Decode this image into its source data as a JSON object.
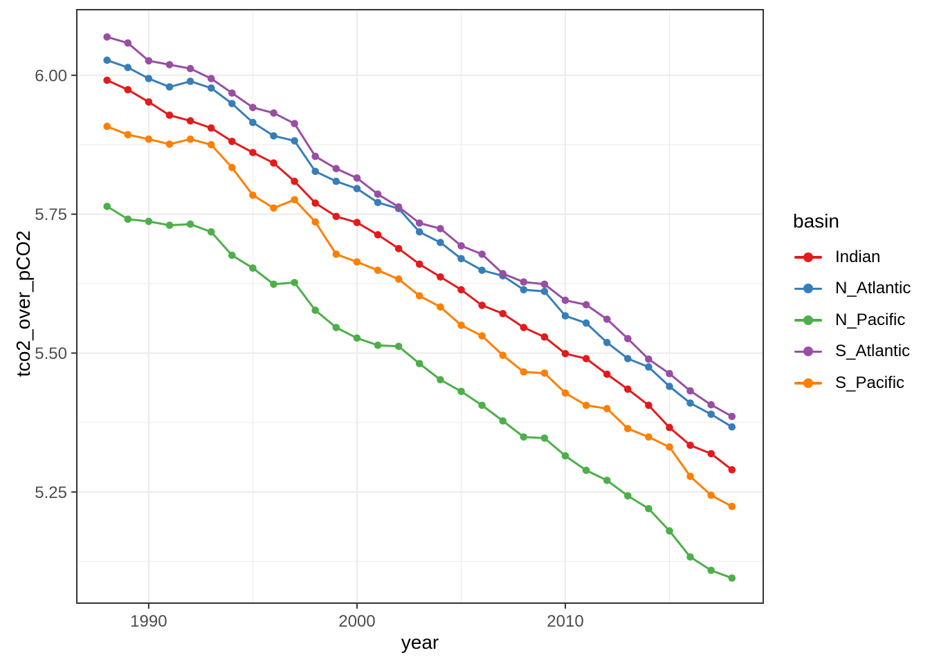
{
  "chart_data": {
    "type": "line",
    "title": "",
    "xlabel": "year",
    "ylabel": "tco2_over_pCO2",
    "legend_title": "basin",
    "legend_position": "right",
    "grid": true,
    "x": [
      1988,
      1989,
      1990,
      1991,
      1992,
      1993,
      1994,
      1995,
      1996,
      1997,
      1998,
      1999,
      2000,
      2001,
      2002,
      2003,
      2004,
      2005,
      2006,
      2007,
      2008,
      2009,
      2010,
      2011,
      2012,
      2013,
      2014,
      2015,
      2016,
      2017,
      2018
    ],
    "series": [
      {
        "name": "Indian",
        "color": "#E41A1C",
        "values": [
          5.991,
          5.974,
          5.952,
          5.928,
          5.918,
          5.905,
          5.881,
          5.861,
          5.842,
          5.809,
          5.77,
          5.746,
          5.735,
          5.713,
          5.688,
          5.66,
          5.637,
          5.614,
          5.586,
          5.571,
          5.546,
          5.529,
          5.499,
          5.49,
          5.462,
          5.435,
          5.406,
          5.366,
          5.334,
          5.319,
          5.29
        ]
      },
      {
        "name": "N_Atlantic",
        "color": "#377EB8",
        "values": [
          6.027,
          6.014,
          5.994,
          5.979,
          5.989,
          5.977,
          5.949,
          5.915,
          5.891,
          5.882,
          5.827,
          5.809,
          5.796,
          5.771,
          5.76,
          5.718,
          5.699,
          5.67,
          5.649,
          5.639,
          5.614,
          5.611,
          5.567,
          5.554,
          5.519,
          5.49,
          5.475,
          5.44,
          5.41,
          5.39,
          5.367
        ]
      },
      {
        "name": "N_Pacific",
        "color": "#4DAF4A",
        "values": [
          5.764,
          5.741,
          5.737,
          5.73,
          5.732,
          5.718,
          5.676,
          5.653,
          5.624,
          5.627,
          5.577,
          5.546,
          5.527,
          5.514,
          5.512,
          5.481,
          5.452,
          5.431,
          5.406,
          5.378,
          5.349,
          5.347,
          5.315,
          5.289,
          5.271,
          5.243,
          5.22,
          5.18,
          5.133,
          5.109,
          5.095
        ]
      },
      {
        "name": "S_Atlantic",
        "color": "#984EA3",
        "values": [
          6.069,
          6.058,
          6.026,
          6.019,
          6.012,
          5.994,
          5.968,
          5.942,
          5.932,
          5.913,
          5.854,
          5.832,
          5.815,
          5.786,
          5.763,
          5.734,
          5.724,
          5.693,
          5.678,
          5.643,
          5.628,
          5.624,
          5.595,
          5.587,
          5.561,
          5.526,
          5.489,
          5.463,
          5.432,
          5.407,
          5.386
        ]
      },
      {
        "name": "S_Pacific",
        "color": "#FF7F00",
        "values": [
          5.908,
          5.893,
          5.885,
          5.876,
          5.885,
          5.875,
          5.834,
          5.784,
          5.761,
          5.776,
          5.736,
          5.678,
          5.664,
          5.649,
          5.633,
          5.603,
          5.583,
          5.55,
          5.531,
          5.496,
          5.466,
          5.464,
          5.428,
          5.406,
          5.4,
          5.364,
          5.349,
          5.331,
          5.278,
          5.244,
          5.224
        ]
      }
    ],
    "x_axis": {
      "ticks": [
        1990,
        2000,
        2010
      ],
      "tick_labels": [
        "1990",
        "2000",
        "2010"
      ],
      "minor_ticks": [
        1995,
        2005,
        2015
      ],
      "range": [
        1986.55,
        2019.5
      ]
    },
    "y_axis": {
      "ticks": [
        5.25,
        5.5,
        5.75,
        6.0
      ],
      "tick_labels": [
        "5.25",
        "5.50",
        "5.75",
        "6.00"
      ],
      "minor_ticks": [
        5.125,
        5.375,
        5.625,
        5.875
      ],
      "range": [
        5.05,
        6.118
      ]
    },
    "theme": {
      "panel_bg": "#FFFFFF",
      "grid_color": "#EBEBEB",
      "panel_border": "#333333",
      "tick_color": "#333333",
      "tick_label_color": "#4D4D4D",
      "title_color": "#000000"
    }
  }
}
